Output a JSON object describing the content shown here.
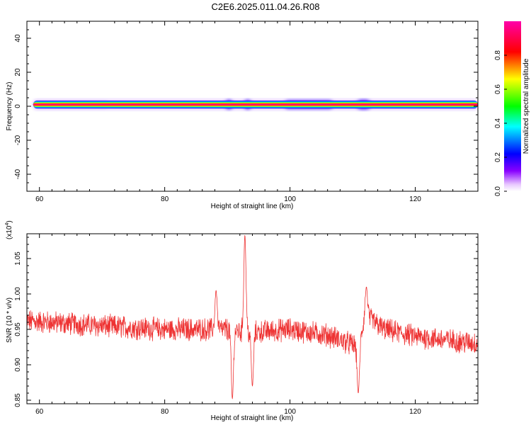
{
  "title": "C2E6.2025.011.04.26.R08",
  "chart_data": [
    {
      "type": "heatmap",
      "xlabel": "Height of straight line (km)",
      "ylabel": "Frequency (Hz)",
      "xlim": [
        58,
        130
      ],
      "ylim": [
        -50,
        50
      ],
      "xticks": [
        60,
        80,
        100,
        120
      ],
      "yticks": [
        40,
        20,
        0,
        -20,
        -40
      ],
      "xtick_labels": [
        "60",
        "80",
        "100",
        "120"
      ],
      "ytick_labels": [
        "40",
        "20",
        "0",
        "-20",
        "-40"
      ],
      "colorbar": {
        "label": "Normalized spectral amplitude",
        "range": [
          0,
          1
        ],
        "ticks": [
          0.0,
          0.2,
          0.4,
          0.6,
          0.8
        ],
        "tick_labels": [
          "0.0",
          "0.2",
          "0.4",
          "0.6",
          "0.8"
        ],
        "colors": [
          "#ffffff",
          "#8800ff",
          "#0000ff",
          "#00ffff",
          "#00ff00",
          "#ffff00",
          "#ff0000",
          "#ff00aa"
        ]
      },
      "band": {
        "x_range": [
          59,
          130
        ],
        "center_frequency_hz": 1,
        "peak_amplitude": 1.0,
        "halo_segments": [
          {
            "x_range": [
              59,
              71
            ],
            "level": 0.1
          },
          {
            "x_range": [
              89.5,
              91
            ],
            "level": 0.3
          },
          {
            "x_range": [
              92.5,
              94
            ],
            "level": 0.3
          },
          {
            "x_range": [
              99,
              107
            ],
            "level": 0.25
          },
          {
            "x_range": [
              110.5,
              113
            ],
            "level": 0.3
          }
        ]
      }
    },
    {
      "type": "line",
      "xlabel": "Height of straight line (km)",
      "ylabel": "SNR (10 * v/v)",
      "scale_label": "(x10",
      "scale_exponent": "4",
      "scale_close": ")",
      "xlim": [
        58,
        130
      ],
      "ylim": [
        0.845,
        1.085
      ],
      "xticks": [
        60,
        80,
        100,
        120
      ],
      "yticks": [
        0.85,
        0.9,
        0.95,
        1.0,
        1.05
      ],
      "xtick_labels": [
        "60",
        "80",
        "100",
        "120"
      ],
      "ytick_labels": [
        "0.85",
        "0.90",
        "0.95",
        "1.00",
        "1.05"
      ],
      "color": "#ee3333",
      "series": [
        {
          "baseline": [
            [
              58,
              0.962
            ],
            [
              70,
              0.955
            ],
            [
              80,
              0.95
            ],
            [
              90,
              0.95
            ],
            [
              93,
              0.945
            ],
            [
              100,
              0.95
            ],
            [
              106,
              0.942
            ],
            [
              111,
              0.925
            ],
            [
              112,
              0.97
            ],
            [
              115,
              0.95
            ],
            [
              120,
              0.94
            ],
            [
              130,
              0.93
            ]
          ],
          "noise_amplitude": 0.014,
          "features": [
            {
              "x": 88.2,
              "y": 1.005
            },
            {
              "x": 90.8,
              "y": 0.852
            },
            {
              "x": 92.8,
              "y": 1.083
            },
            {
              "x": 94.0,
              "y": 0.87
            },
            {
              "x": 110.9,
              "y": 0.86
            },
            {
              "x": 112.2,
              "y": 1.01
            }
          ]
        }
      ]
    }
  ]
}
